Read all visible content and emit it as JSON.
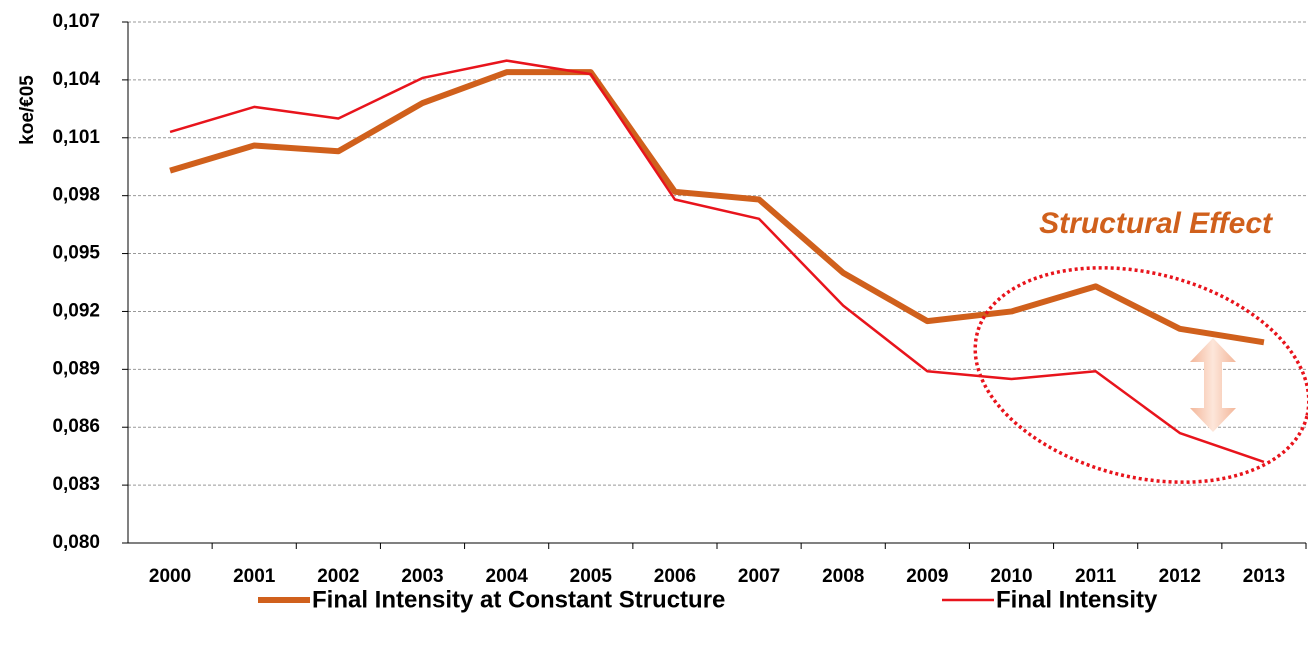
{
  "chart_data": {
    "type": "line",
    "y_label": "koe/€05",
    "annotation": "Structural Effect",
    "categories": [
      "2000",
      "2001",
      "2002",
      "2003",
      "2004",
      "2005",
      "2006",
      "2007",
      "2008",
      "2009",
      "2010",
      "2011",
      "2012",
      "2013"
    ],
    "series": [
      {
        "name": "Final Intensity at Constant Structure",
        "color": "#d0601c",
        "width": 6,
        "values": [
          0.0993,
          0.1006,
          0.1003,
          0.1028,
          0.1044,
          0.1044,
          0.0982,
          0.0978,
          0.094,
          0.0915,
          0.092,
          0.0933,
          0.0911,
          0.0904
        ]
      },
      {
        "name": "Final Intensity",
        "color": "#e8141c",
        "width": 2.5,
        "values": [
          0.1013,
          0.1026,
          0.102,
          0.1041,
          0.105,
          0.1043,
          0.0978,
          0.0968,
          0.0923,
          0.0889,
          0.0885,
          0.0889,
          0.0857,
          0.0842
        ]
      }
    ],
    "ylim": [
      0.08,
      0.107
    ],
    "yticks": [
      {
        "value": 0.08,
        "label": "0,080"
      },
      {
        "value": 0.083,
        "label": "0,083"
      },
      {
        "value": 0.086,
        "label": "0,086"
      },
      {
        "value": 0.089,
        "label": "0,089"
      },
      {
        "value": 0.092,
        "label": "0,092"
      },
      {
        "value": 0.095,
        "label": "0,095"
      },
      {
        "value": 0.098,
        "label": "0,098"
      },
      {
        "value": 0.101,
        "label": "0,101"
      },
      {
        "value": 0.104,
        "label": "0,104"
      },
      {
        "value": 0.107,
        "label": "0,107"
      }
    ],
    "grid": true,
    "legend": "bottom"
  }
}
